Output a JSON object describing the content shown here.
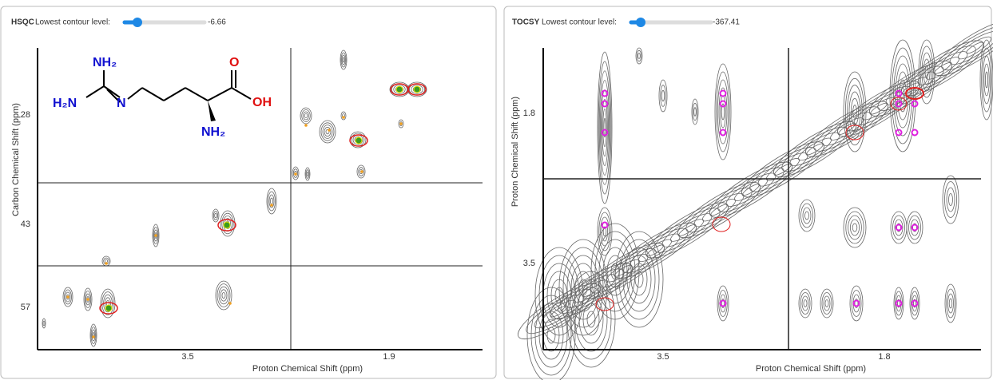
{
  "panels": [
    {
      "name": "HSQC",
      "control_label": "Lowest contour level:",
      "value": "-6.66",
      "x_axis_label": "Proton Chemical Shift (ppm)",
      "y_axis_label": "Carbon Chemical Shift (ppm)",
      "x_ticks": [
        "3.5",
        "1.9"
      ],
      "y_ticks": [
        "28",
        "43",
        "57"
      ]
    },
    {
      "name": "TOCSY",
      "control_label": "Lowest contour level:",
      "value": "-367.41",
      "x_axis_label": "Proton Chemical Shift (ppm)",
      "y_axis_label": "Proton Chemical Shift (ppm)",
      "x_ticks": [
        "3.5",
        "1.8"
      ],
      "y_ticks": [
        "1.8",
        "3.5"
      ]
    }
  ],
  "molecule": {
    "atoms": [
      "NH₂",
      "H₂N",
      "N",
      "O",
      "OH",
      "NH₂"
    ]
  }
}
